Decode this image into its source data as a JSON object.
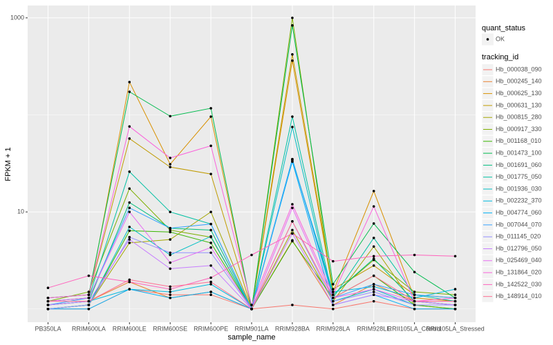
{
  "chart_data": {
    "type": "line",
    "x_label": "sample_name",
    "y_label": "FPKM + 1",
    "log_y": true,
    "ylim": [
      0.73,
      1340
    ],
    "yticks": [
      10,
      1000
    ],
    "minor_yticks": [
      1,
      100
    ],
    "grid": true,
    "categories": [
      "PB350LA",
      "RRIM600LA",
      "RRIM600LE",
      "RRIM600SE",
      "RRIM600PE",
      "RRIM901LA",
      "RRIM928BA",
      "RRIM928LA",
      "RRIM928LE",
      "RRII105LA_Control",
      "RRII105LA_Stressed"
    ],
    "shape_legend_title": "quant_status",
    "shape_labels": [
      "OK"
    ],
    "legend_title": "tracking_id",
    "legend_position": "right",
    "series": [
      {
        "name": "Hb_000038_090",
        "color": "#F8766D",
        "values": [
          1,
          1,
          1.6,
          1.4,
          1.4,
          1,
          1.1,
          1,
          1.2,
          1,
          1
        ]
      },
      {
        "name": "Hb_000245_140",
        "color": "#EA8331",
        "values": [
          1.1,
          1.2,
          1.9,
          1.3,
          1.5,
          1,
          5.1,
          1.1,
          1.8,
          1.2,
          1.1
        ]
      },
      {
        "name": "Hb_000625_130",
        "color": "#D89000",
        "values": [
          1.2,
          1.3,
          218,
          31,
          96,
          1,
          362,
          1.5,
          16.4,
          1.3,
          1.2
        ]
      },
      {
        "name": "Hb_000631_130",
        "color": "#C09B00",
        "values": [
          1.3,
          1.4,
          57,
          29,
          24.6,
          1,
          420,
          1.6,
          2.8,
          1.4,
          1.3
        ]
      },
      {
        "name": "Hb_000815_280",
        "color": "#A3A500",
        "values": [
          1,
          1.1,
          4.8,
          5.2,
          10,
          1,
          6.5,
          1.2,
          4.4,
          1.1,
          1
        ]
      },
      {
        "name": "Hb_000917_330",
        "color": "#7CAE00",
        "values": [
          1.2,
          1.5,
          17.4,
          6.5,
          5.5,
          1,
          1000,
          1.4,
          3.2,
          1.5,
          1.4
        ]
      },
      {
        "name": "Hb_001168_010",
        "color": "#39B600",
        "values": [
          1,
          1.1,
          6.4,
          6.2,
          4.8,
          1,
          5,
          1.3,
          2.2,
          1.1,
          1
        ]
      },
      {
        "name": "Hb_001473_100",
        "color": "#00BB4E",
        "values": [
          1.3,
          1.4,
          173,
          97,
          117,
          1,
          836,
          1.8,
          7.6,
          2.4,
          1.3
        ]
      },
      {
        "name": "Hb_001691_060",
        "color": "#00BF7D",
        "values": [
          1.1,
          1.2,
          12.5,
          6.8,
          6.5,
          1,
          35,
          1.4,
          3.3,
          1.2,
          1.1
        ]
      },
      {
        "name": "Hb_001775_050",
        "color": "#00C1A3",
        "values": [
          1.2,
          1.3,
          26,
          10,
          7.5,
          1,
          96,
          1.3,
          5.4,
          1.4,
          1.2
        ]
      },
      {
        "name": "Hb_001936_030",
        "color": "#00BFC4",
        "values": [
          1,
          1.1,
          7,
          3.6,
          5.6,
          1,
          75,
          1.2,
          1.6,
          1.1,
          1.1
        ]
      },
      {
        "name": "Hb_002232_370",
        "color": "#00BAE0",
        "values": [
          1.1,
          1.2,
          1.6,
          1.5,
          1.8,
          1,
          34,
          1.5,
          1.7,
          1.3,
          1.6
        ]
      },
      {
        "name": "Hb_004774_060",
        "color": "#00B0F6",
        "values": [
          1,
          1,
          1.6,
          1.3,
          1.5,
          1,
          33,
          1.1,
          1.4,
          1,
          1
        ]
      },
      {
        "name": "Hb_007044_070",
        "color": "#35A2FF",
        "values": [
          1.1,
          1.3,
          11,
          6.8,
          7.5,
          1,
          35,
          1.3,
          1.8,
          1.4,
          1.3
        ]
      },
      {
        "name": "Hb_011145_020",
        "color": "#9590FF",
        "values": [
          1,
          1.1,
          5.5,
          3.8,
          3.8,
          1,
          8,
          1.2,
          1.5,
          1.1,
          1.1
        ]
      },
      {
        "name": "Hb_012796_050",
        "color": "#C77CFF",
        "values": [
          1.1,
          1.2,
          5.2,
          2.6,
          2.8,
          1,
          6,
          1.1,
          1.4,
          1.2,
          1.1
        ]
      },
      {
        "name": "Hb_025469_040",
        "color": "#E76BF3",
        "values": [
          1.2,
          1.3,
          10,
          3,
          4.3,
          1,
          11,
          1.3,
          1.6,
          1.2,
          1.2
        ]
      },
      {
        "name": "Hb_131864_020",
        "color": "#FA62DB",
        "values": [
          1.3,
          1.4,
          76,
          36,
          48,
          1.1,
          12,
          1.4,
          11.4,
          1.2,
          1.3
        ]
      },
      {
        "name": "Hb_142522_030",
        "color": "#FF62BC",
        "values": [
          1.65,
          2.2,
          1.9,
          1.6,
          2.1,
          3.6,
          6,
          3.1,
          3.5,
          3.6,
          3.5
        ]
      },
      {
        "name": "Hb_148914_010",
        "color": "#FF6C90",
        "values": [
          1.2,
          1.2,
          2,
          1.7,
          1.9,
          1,
          8,
          1.3,
          2.2,
          1.2,
          1.2
        ]
      }
    ]
  }
}
